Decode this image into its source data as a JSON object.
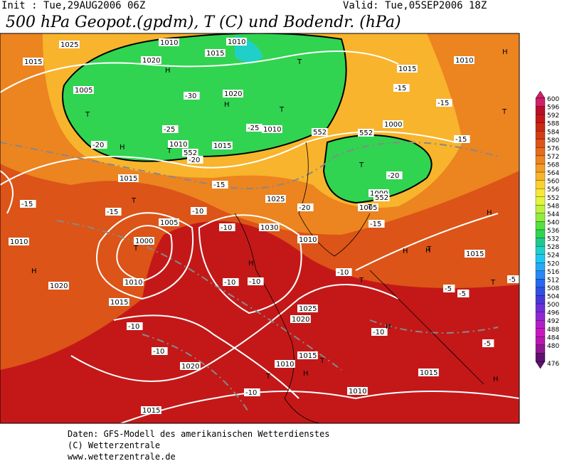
{
  "header": {
    "init": "Init : Tue,29AUG2006 06Z",
    "valid": "Valid: Tue,05SEP2006 18Z",
    "title": "500 hPa Geopot.(gpdm), T (C) und Bodendr. (hPa)"
  },
  "map_labels": [
    "1015",
    "1020",
    "1025",
    "1010",
    "1015",
    "1010",
    "1005",
    "1020",
    "1010",
    "1015",
    "1010",
    "1015",
    "1020",
    "1025",
    "1030",
    "1000",
    "1005",
    "1010",
    "1015",
    "1010",
    "1020",
    "1025",
    "1015",
    "1010",
    "1015",
    "1010",
    "1005",
    "1000",
    "1000",
    "1010",
    "1015",
    "1015",
    "1020",
    "1015",
    "1010",
    "-25",
    "-30",
    "-25",
    "-20",
    "-15",
    "-20",
    "-15",
    "-10",
    "-10",
    "-15",
    "-20",
    "-15",
    "-10",
    "-10",
    "-10",
    "-5",
    "-5",
    "-5",
    "-10",
    "-5",
    "-10",
    "-15",
    "-15",
    "-15",
    "-20",
    "-10",
    "-10",
    "H",
    "H",
    "H",
    "H",
    "H",
    "H",
    "H",
    "H",
    "H",
    "H",
    "H",
    "H",
    "T",
    "T",
    "T",
    "T",
    "T",
    "T",
    "T",
    "T",
    "T",
    "T",
    "T",
    "T",
    "T",
    "T",
    "552",
    "552",
    "552",
    "552"
  ],
  "colorbar": {
    "levels": [
      600,
      596,
      592,
      588,
      584,
      580,
      576,
      572,
      568,
      564,
      560,
      556,
      552,
      548,
      544,
      540,
      536,
      532,
      528,
      524,
      520,
      516,
      512,
      508,
      504,
      500,
      496,
      492,
      488,
      484,
      480,
      476
    ],
    "colors": [
      "#d0206a",
      "#b8102a",
      "#c41818",
      "#c82a14",
      "#d43c14",
      "#dc5418",
      "#e46c1c",
      "#ec8420",
      "#f49c28",
      "#f8b42c",
      "#fcd030",
      "#f8e838",
      "#e4f43c",
      "#c0f040",
      "#90ec40",
      "#58e040",
      "#30d450",
      "#20c890",
      "#20d0c8",
      "#20c8f0",
      "#28a8f8",
      "#2888f8",
      "#2868f0",
      "#3050e0",
      "#4838d8",
      "#6c30d8",
      "#9028d0",
      "#b020c8",
      "#c818c0",
      "#b818b0",
      "#901890",
      "#601070"
    ]
  },
  "footer": [
    "Daten: GFS-Modell des amerikanischen Wetterdienstes",
    "(C) Wetterzentrale",
    "www.wetterzentrale.de"
  ]
}
